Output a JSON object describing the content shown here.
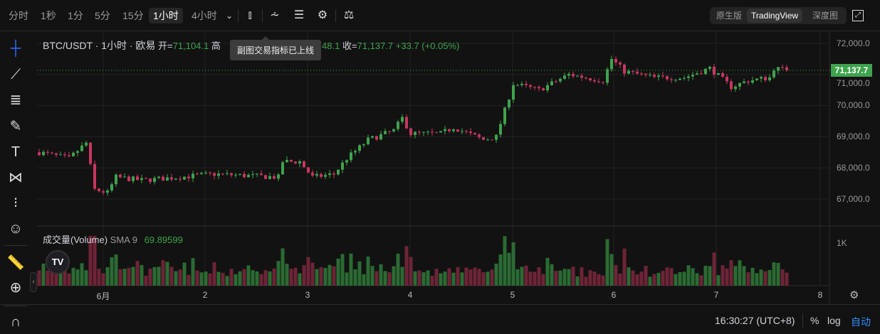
{
  "toolbar": {
    "intervals": [
      "分时",
      "1秒",
      "1分",
      "5分",
      "15分",
      "1小时",
      "4小时"
    ],
    "active_interval": "1小时",
    "views": [
      "原生版",
      "TradingView",
      "深度图"
    ],
    "active_view": "TradingView"
  },
  "legend": {
    "symbol": "BTC/USDT · 1小时 · 欧易",
    "open_label": "开=",
    "open": "71,104.1",
    "high_partial": "高",
    "close_fragment": "48.1",
    "close_label": "收=",
    "close": "71,137.7",
    "change": "+33.7 (+0.05%)"
  },
  "tooltip": "副图交易指标已上线",
  "volume_legend": {
    "title": "成交量(Volume)",
    "sma": "SMA 9",
    "value": "69.89599"
  },
  "price_axis": {
    "ticks": [
      "72,000.0",
      "71,000.0",
      "70,000.0",
      "69,000.0",
      "68,000.0",
      "67,000.0"
    ],
    "last_price": "71,137.7",
    "volume_tick": "1K"
  },
  "time_axis": {
    "ticks": [
      "6月",
      "2",
      "3",
      "4",
      "5",
      "6",
      "7",
      "8"
    ]
  },
  "bottom": {
    "time": "16:30:27 (UTC+8)",
    "percent": "%",
    "log": "log",
    "auto": "自动"
  },
  "colors": {
    "up": "#3fa34d",
    "down": "#c8365f",
    "up_vol": "#2b6b33",
    "down_vol": "#6e2437"
  },
  "chart_data": {
    "type": "candlestick",
    "interval": "1小时",
    "price_path": [
      [
        "05-31 09",
        68500
      ],
      [
        "05-31 16",
        68300
      ],
      [
        "05-31 20",
        68800
      ],
      [
        "05-31 22",
        67300
      ],
      [
        "06-01 01",
        67200
      ],
      [
        "06-01 03",
        67700
      ],
      [
        "06-01 09",
        67600
      ],
      [
        "06-02 02",
        67800
      ],
      [
        "06-02 17",
        67700
      ],
      [
        "06-02 18",
        68200
      ],
      [
        "06-02 22",
        68200
      ],
      [
        "06-03 01",
        67700
      ],
      [
        "06-03 06",
        67800
      ],
      [
        "06-03 09",
        68300
      ],
      [
        "06-03 14",
        68900
      ],
      [
        "06-03 20",
        69200
      ],
      [
        "06-03 22",
        69600
      ],
      [
        "06-04 00",
        69100
      ],
      [
        "06-04 07",
        69100
      ],
      [
        "06-04 10",
        69300
      ],
      [
        "06-04 17",
        68900
      ],
      [
        "06-04 20",
        69000
      ],
      [
        "06-05 00",
        70700
      ],
      [
        "06-05 06",
        70500
      ],
      [
        "06-05 13",
        71000
      ],
      [
        "06-05 21",
        70800
      ],
      [
        "06-05 23",
        71500
      ],
      [
        "06-06 02",
        71100
      ],
      [
        "06-06 09",
        70900
      ],
      [
        "06-06 16",
        70900
      ],
      [
        "06-06 22",
        71200
      ],
      [
        "06-07 03",
        70600
      ],
      [
        "06-07 07",
        70800
      ],
      [
        "06-07 12",
        70900
      ],
      [
        "06-07 13",
        71200
      ],
      [
        "06-07 16",
        71137.7
      ]
    ]
  }
}
